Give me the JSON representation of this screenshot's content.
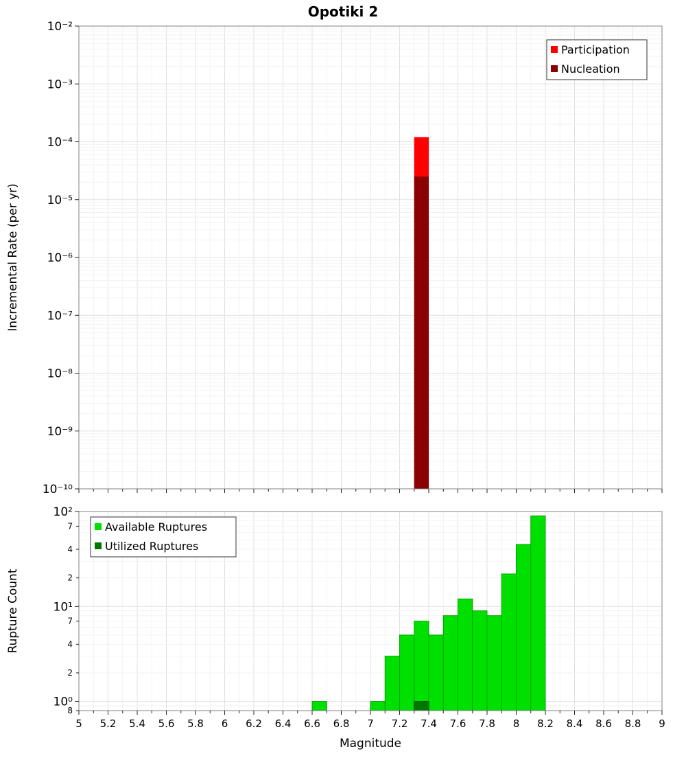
{
  "title": "Opotiki 2",
  "chart_data": [
    {
      "type": "bar",
      "panel": "incremental-rate",
      "ylabel": "Incremental Rate (per yr)",
      "yscale": "log",
      "ylim": [
        1e-10,
        0.01
      ],
      "xlim": [
        5,
        9
      ],
      "bar_width": 0.1,
      "grid": true,
      "legend_position": "top-right",
      "legend": [
        {
          "label": "Participation",
          "color": "#ff0000"
        },
        {
          "label": "Nucleation",
          "color": "#8b0000"
        }
      ],
      "yticks": [
        {
          "v": 0.01,
          "label": "10⁻²"
        },
        {
          "v": 0.001,
          "label": "10⁻³"
        },
        {
          "v": 0.0001,
          "label": "10⁻⁴"
        },
        {
          "v": 1e-05,
          "label": "10⁻⁵"
        },
        {
          "v": 1e-06,
          "label": "10⁻⁶"
        },
        {
          "v": 1e-07,
          "label": "10⁻⁷"
        },
        {
          "v": 1e-08,
          "label": "10⁻⁸"
        },
        {
          "v": 1e-09,
          "label": "10⁻⁹"
        },
        {
          "v": 1e-10,
          "label": "10⁻¹⁰"
        }
      ],
      "series": [
        {
          "name": "Participation",
          "color": "#ff0000",
          "points": [
            {
              "x": 7.3,
              "y": 0.00012
            }
          ]
        },
        {
          "name": "Nucleation",
          "color": "#8b0000",
          "points": [
            {
              "x": 7.3,
              "y": 2.5e-05
            }
          ]
        }
      ]
    },
    {
      "type": "bar",
      "panel": "rupture-count",
      "ylabel": "Rupture Count",
      "xlabel": "Magnitude",
      "yscale": "log",
      "ylim": [
        0.8,
        100
      ],
      "xlim": [
        5,
        9
      ],
      "bar_width": 0.1,
      "grid": true,
      "legend_position": "top-left",
      "legend": [
        {
          "label": "Available Ruptures",
          "color": "#00e000"
        },
        {
          "label": "Utilized Ruptures",
          "color": "#007700"
        }
      ],
      "yticks": [
        {
          "v": 100,
          "label": "10²"
        },
        {
          "v": 70,
          "label": "7",
          "minor": true
        },
        {
          "v": 40,
          "label": "4",
          "minor": true
        },
        {
          "v": 20,
          "label": "2",
          "minor": true
        },
        {
          "v": 10,
          "label": "10¹"
        },
        {
          "v": 7,
          "label": "7",
          "minor": true
        },
        {
          "v": 4,
          "label": "4",
          "minor": true
        },
        {
          "v": 2,
          "label": "2",
          "minor": true
        },
        {
          "v": 1,
          "label": "10⁰"
        },
        {
          "v": 0.8,
          "label": "8",
          "minor": true
        }
      ],
      "xticks": [
        {
          "v": 5,
          "label": "5"
        },
        {
          "v": 5.2,
          "label": "5.2"
        },
        {
          "v": 5.4,
          "label": "5.4"
        },
        {
          "v": 5.6,
          "label": "5.6"
        },
        {
          "v": 5.8,
          "label": "5.8"
        },
        {
          "v": 6,
          "label": "6"
        },
        {
          "v": 6.2,
          "label": "6.2"
        },
        {
          "v": 6.4,
          "label": "6.4"
        },
        {
          "v": 6.6,
          "label": "6.6"
        },
        {
          "v": 6.8,
          "label": "6.8"
        },
        {
          "v": 7,
          "label": "7"
        },
        {
          "v": 7.2,
          "label": "7.2"
        },
        {
          "v": 7.4,
          "label": "7.4"
        },
        {
          "v": 7.6,
          "label": "7.6"
        },
        {
          "v": 7.8,
          "label": "7.8"
        },
        {
          "v": 8,
          "label": "8"
        },
        {
          "v": 8.2,
          "label": "8.2"
        },
        {
          "v": 8.4,
          "label": "8.4"
        },
        {
          "v": 8.6,
          "label": "8.6"
        },
        {
          "v": 8.8,
          "label": "8.8"
        },
        {
          "v": 9,
          "label": "9"
        }
      ],
      "series": [
        {
          "name": "Available Ruptures",
          "color": "#00e000",
          "stroke": "#00a000",
          "points": [
            {
              "x": 6.6,
              "y": 1
            },
            {
              "x": 7.0,
              "y": 1
            },
            {
              "x": 7.1,
              "y": 3
            },
            {
              "x": 7.2,
              "y": 5
            },
            {
              "x": 7.3,
              "y": 7
            },
            {
              "x": 7.4,
              "y": 5
            },
            {
              "x": 7.5,
              "y": 8
            },
            {
              "x": 7.6,
              "y": 12
            },
            {
              "x": 7.7,
              "y": 9
            },
            {
              "x": 7.8,
              "y": 8
            },
            {
              "x": 7.9,
              "y": 22
            },
            {
              "x": 8.0,
              "y": 45
            },
            {
              "x": 8.1,
              "y": 90
            }
          ]
        },
        {
          "name": "Utilized Ruptures",
          "color": "#007700",
          "stroke": "#005500",
          "points": [
            {
              "x": 7.3,
              "y": 1
            }
          ]
        }
      ]
    }
  ]
}
